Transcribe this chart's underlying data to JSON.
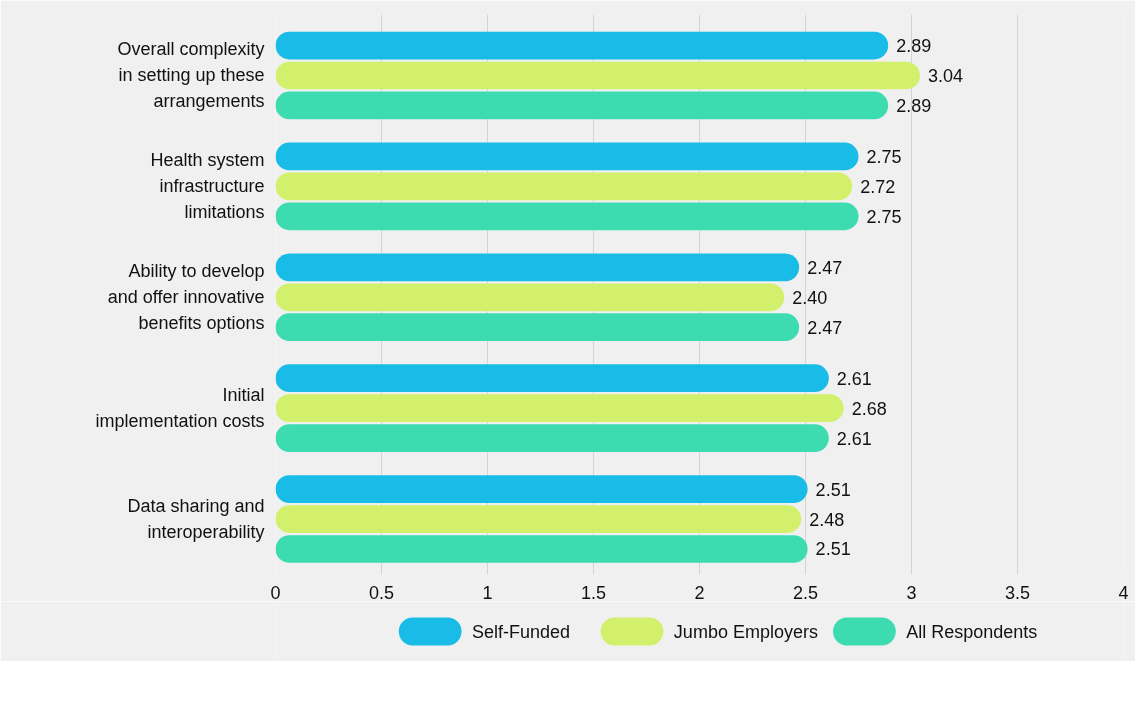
{
  "chart_data": {
    "type": "bar",
    "orientation": "horizontal",
    "categories": [
      "Overall complexity in setting up these arrangements",
      "Health system infrastructure limitations",
      "Ability to develop and offer innovative benefits options",
      "Initial implementation costs",
      "Data sharing and interoperability"
    ],
    "series": [
      {
        "name": "Self-Funded",
        "color": "#18bce6",
        "values": [
          2.89,
          2.75,
          2.47,
          2.61,
          2.51
        ],
        "value_labels": [
          "2.89",
          "2.75",
          "2.47",
          "2.61",
          "2.51"
        ]
      },
      {
        "name": "Jumbo Employers",
        "color": "#d2f06c",
        "values": [
          3.04,
          2.72,
          2.4,
          2.68,
          2.48
        ],
        "value_labels": [
          "3.04",
          "2.72",
          "2.40",
          "2.68",
          "2.48"
        ]
      },
      {
        "name": "All Respondents",
        "color": "#3ddcb0",
        "values": [
          2.89,
          2.75,
          2.47,
          2.61,
          2.51
        ],
        "value_labels": [
          "2.89",
          "2.75",
          "2.47",
          "2.61",
          "2.51"
        ]
      }
    ],
    "xlim": [
      0,
      4
    ],
    "xticks": [
      0,
      0.5,
      1,
      1.5,
      2,
      2.5,
      3,
      3.5,
      4
    ],
    "grid": "x",
    "legend": "bottom"
  }
}
